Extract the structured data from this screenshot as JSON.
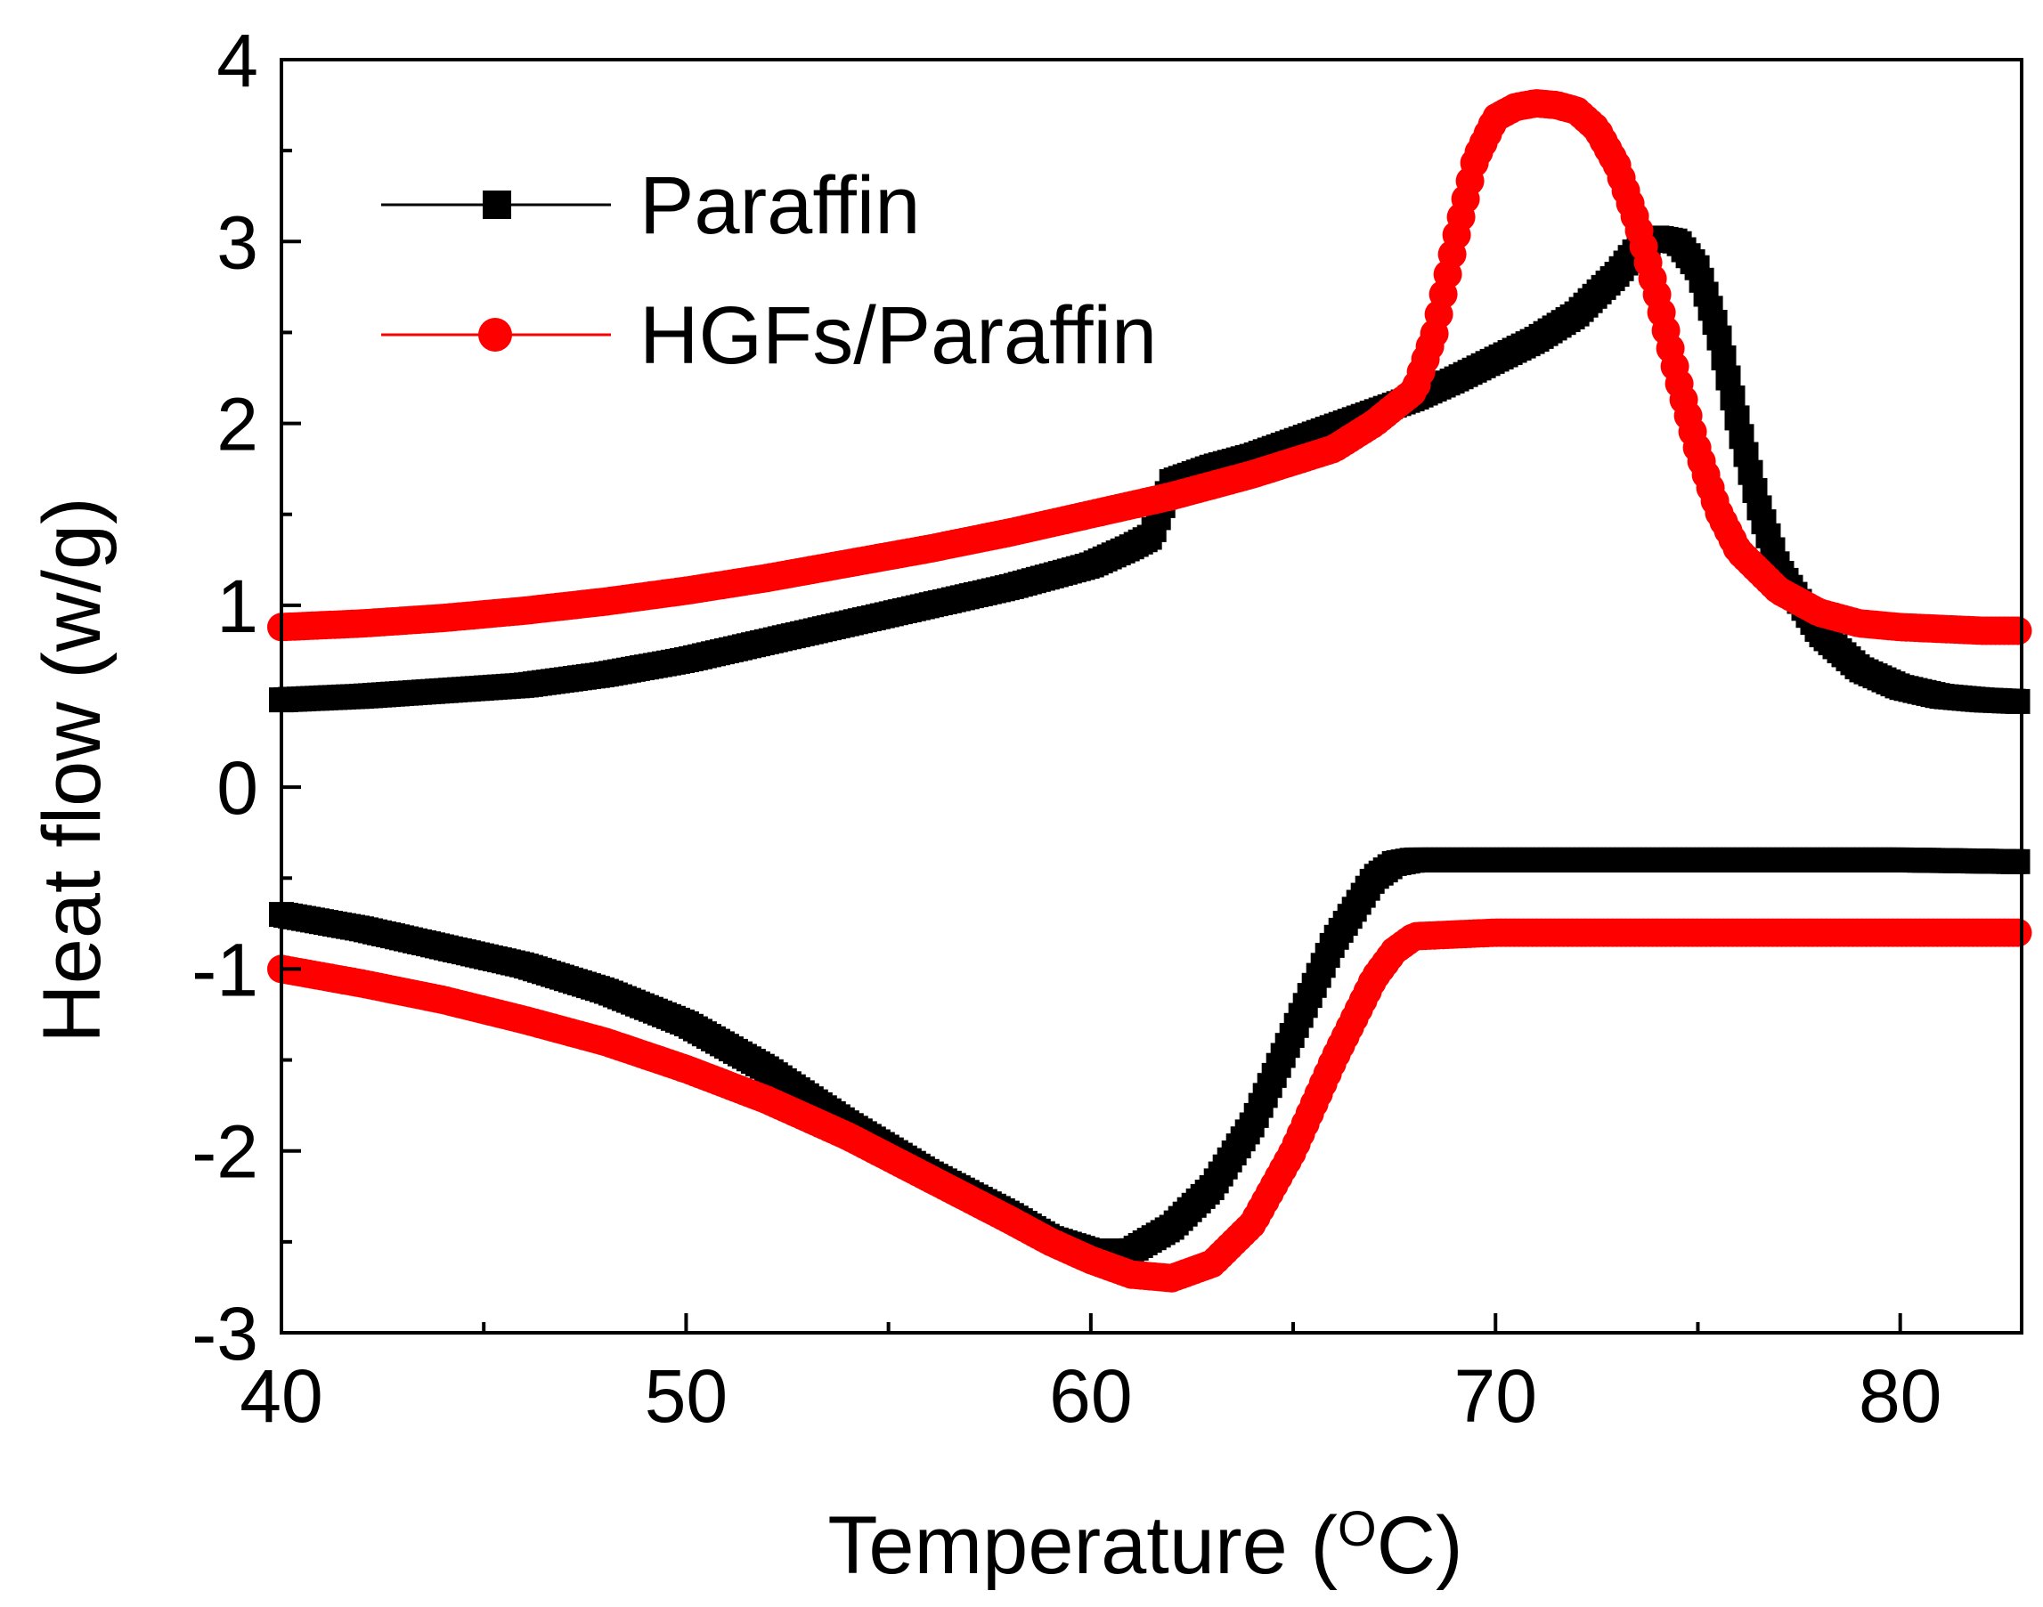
{
  "chart_data": {
    "type": "scatter",
    "title": "",
    "xlabel": "Temperature (",
    "xlabel_unit_sup": "O",
    "xlabel_unit_tail": "C)",
    "ylabel": "Heat flow (w/g)",
    "xlim": [
      40,
      83
    ],
    "ylim": [
      -3,
      4
    ],
    "xticks": [
      40,
      50,
      60,
      70,
      80
    ],
    "xtick_labels": [
      "40",
      "50",
      "60",
      "70",
      "80"
    ],
    "xminor_ticks": [
      45,
      55,
      65,
      75
    ],
    "yticks": [
      -3,
      -2,
      -1,
      0,
      1,
      2,
      3,
      4
    ],
    "ytick_labels": [
      "-3",
      "-2",
      "-1",
      "0",
      "1",
      "2",
      "3",
      "4"
    ],
    "grid": false,
    "legend_position": "top-left",
    "series": [
      {
        "name": "Paraffin",
        "color": "#000000",
        "marker": "square",
        "heating": {
          "x": [
            40,
            42,
            44,
            46,
            48,
            50,
            52,
            54,
            56,
            58,
            60,
            61,
            61.5,
            62,
            63,
            64,
            65,
            66,
            67,
            68,
            69,
            70,
            71,
            72,
            73,
            73.5,
            74,
            74.5,
            75,
            75.5,
            76,
            76.5,
            77,
            78,
            79,
            80,
            81,
            82,
            83
          ],
          "y": [
            0.48,
            0.5,
            0.53,
            0.56,
            0.62,
            0.7,
            0.8,
            0.9,
            1.0,
            1.1,
            1.22,
            1.32,
            1.38,
            1.68,
            1.76,
            1.82,
            1.9,
            1.98,
            2.06,
            2.14,
            2.24,
            2.35,
            2.46,
            2.6,
            2.82,
            2.96,
            3.02,
            3.0,
            2.85,
            2.5,
            2.0,
            1.55,
            1.2,
            0.85,
            0.65,
            0.55,
            0.5,
            0.48,
            0.47
          ]
        },
        "cooling": {
          "x": [
            40,
            42,
            44,
            46,
            48,
            50,
            52,
            54,
            56,
            58,
            59,
            60,
            61,
            62,
            63,
            64,
            65,
            66,
            67,
            67.5,
            68,
            70,
            75,
            80,
            83
          ],
          "y": [
            -0.7,
            -0.78,
            -0.88,
            -0.98,
            -1.12,
            -1.3,
            -1.55,
            -1.85,
            -2.12,
            -2.35,
            -2.48,
            -2.55,
            -2.55,
            -2.42,
            -2.2,
            -1.85,
            -1.35,
            -0.85,
            -0.5,
            -0.42,
            -0.4,
            -0.4,
            -0.4,
            -0.4,
            -0.41
          ]
        }
      },
      {
        "name": "HGFs/Paraffin",
        "color": "#ff0000",
        "marker": "circle",
        "heating": {
          "x": [
            40,
            42,
            44,
            46,
            48,
            50,
            52,
            54,
            56,
            58,
            60,
            62,
            64,
            66,
            67,
            68,
            68.5,
            69,
            69.5,
            70,
            70.5,
            71,
            71.5,
            72,
            72.5,
            73,
            73.5,
            74,
            74.5,
            75,
            75.5,
            76,
            77,
            78,
            79,
            80,
            81,
            82,
            83
          ],
          "y": [
            0.88,
            0.9,
            0.93,
            0.97,
            1.02,
            1.08,
            1.15,
            1.23,
            1.31,
            1.4,
            1.5,
            1.6,
            1.72,
            1.86,
            2.0,
            2.18,
            2.5,
            3.0,
            3.45,
            3.68,
            3.74,
            3.76,
            3.75,
            3.72,
            3.62,
            3.42,
            3.1,
            2.7,
            2.25,
            1.85,
            1.52,
            1.3,
            1.08,
            0.96,
            0.9,
            0.88,
            0.87,
            0.86,
            0.86
          ]
        },
        "cooling": {
          "x": [
            40,
            42,
            44,
            46,
            48,
            50,
            52,
            54,
            56,
            58,
            59,
            60,
            61,
            62,
            63,
            64,
            65,
            66,
            67,
            67.5,
            68,
            70,
            75,
            80,
            83
          ],
          "y": [
            -1.0,
            -1.08,
            -1.17,
            -1.28,
            -1.4,
            -1.55,
            -1.72,
            -1.92,
            -2.15,
            -2.38,
            -2.5,
            -2.6,
            -2.68,
            -2.7,
            -2.62,
            -2.4,
            -2.0,
            -1.5,
            -1.05,
            -0.9,
            -0.82,
            -0.8,
            -0.8,
            -0.8,
            -0.8
          ]
        }
      }
    ]
  }
}
